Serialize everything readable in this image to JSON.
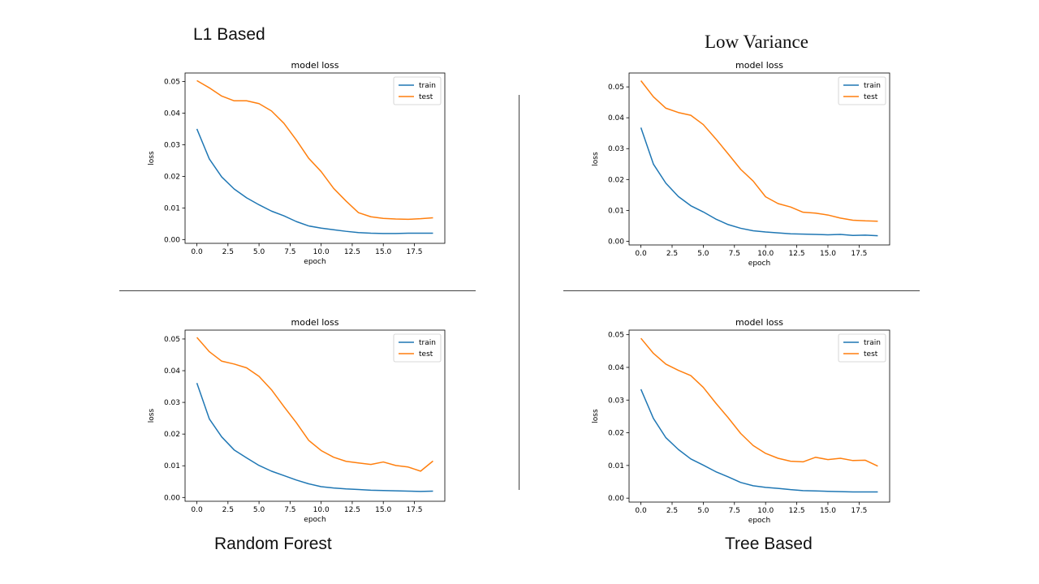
{
  "captions": {
    "top_left": "L1 Based",
    "top_right": "Low Variance",
    "bottom_left": "Random Forest",
    "bottom_right": "Tree Based"
  },
  "colors": {
    "train": "#1f77b4",
    "test": "#ff7f0e"
  },
  "chart_data": [
    {
      "type": "line",
      "title": "model loss",
      "xlabel": "epoch",
      "ylabel": "loss",
      "xlim": [
        -0.95,
        19.95
      ],
      "ylim": [
        -0.0012,
        0.0527
      ],
      "xticks": [
        "0.0",
        "2.5",
        "5.0",
        "7.5",
        "10.0",
        "12.5",
        "15.0",
        "17.5"
      ],
      "yticks": [
        "0.00",
        "0.01",
        "0.02",
        "0.03",
        "0.04",
        "0.05"
      ],
      "legend": "top-right",
      "x": [
        0,
        1,
        2,
        3,
        4,
        5,
        6,
        7,
        8,
        9,
        10,
        11,
        12,
        13,
        14,
        15,
        16,
        17,
        18,
        19
      ],
      "series": [
        {
          "name": "train",
          "color": "#1f77b4",
          "values": [
            0.035,
            0.0255,
            0.0198,
            0.016,
            0.0132,
            0.011,
            0.009,
            0.0075,
            0.0057,
            0.0043,
            0.0036,
            0.0031,
            0.0026,
            0.0022,
            0.002,
            0.0019,
            0.0019,
            0.002,
            0.002,
            0.002
          ]
        },
        {
          "name": "test",
          "color": "#ff7f0e",
          "values": [
            0.0503,
            0.048,
            0.0454,
            0.0439,
            0.0439,
            0.043,
            0.0407,
            0.0368,
            0.0315,
            0.0257,
            0.0215,
            0.0162,
            0.0122,
            0.0085,
            0.0072,
            0.0067,
            0.0065,
            0.0064,
            0.0066,
            0.0069
          ]
        }
      ]
    },
    {
      "type": "line",
      "title": "model loss",
      "xlabel": "epoch",
      "ylabel": "loss",
      "xlim": [
        -0.95,
        19.95
      ],
      "ylim": [
        -0.0012,
        0.0545
      ],
      "xticks": [
        "0.0",
        "2.5",
        "5.0",
        "7.5",
        "10.0",
        "12.5",
        "15.0",
        "17.5"
      ],
      "yticks": [
        "0.00",
        "0.01",
        "0.02",
        "0.03",
        "0.04",
        "0.05"
      ],
      "legend": "top-right",
      "x": [
        0,
        1,
        2,
        3,
        4,
        5,
        6,
        7,
        8,
        9,
        10,
        11,
        12,
        13,
        14,
        15,
        16,
        17,
        18,
        19
      ],
      "series": [
        {
          "name": "train",
          "color": "#1f77b4",
          "values": [
            0.0368,
            0.025,
            0.0188,
            0.0145,
            0.0115,
            0.0095,
            0.0072,
            0.0054,
            0.0042,
            0.0034,
            0.003,
            0.0027,
            0.0024,
            0.0023,
            0.0022,
            0.0021,
            0.0022,
            0.0019,
            0.002,
            0.0018
          ]
        },
        {
          "name": "test",
          "color": "#ff7f0e",
          "values": [
            0.052,
            0.0468,
            0.0431,
            0.0417,
            0.0408,
            0.0378,
            0.0332,
            0.0283,
            0.0233,
            0.0195,
            0.0144,
            0.0122,
            0.0111,
            0.0094,
            0.0091,
            0.0085,
            0.0075,
            0.0068,
            0.0066,
            0.0065
          ]
        }
      ]
    },
    {
      "type": "line",
      "title": "model loss",
      "xlabel": "epoch",
      "ylabel": "loss",
      "xlim": [
        -0.95,
        19.95
      ],
      "ylim": [
        -0.0012,
        0.0528
      ],
      "xticks": [
        "0.0",
        "2.5",
        "5.0",
        "7.5",
        "10.0",
        "12.5",
        "15.0",
        "17.5"
      ],
      "yticks": [
        "0.00",
        "0.01",
        "0.02",
        "0.03",
        "0.04",
        "0.05"
      ],
      "legend": "top-right",
      "x": [
        0,
        1,
        2,
        3,
        4,
        5,
        6,
        7,
        8,
        9,
        10,
        11,
        12,
        13,
        14,
        15,
        16,
        17,
        18,
        19
      ],
      "series": [
        {
          "name": "train",
          "color": "#1f77b4",
          "values": [
            0.0361,
            0.0248,
            0.0191,
            0.015,
            0.0125,
            0.0101,
            0.0083,
            0.0069,
            0.0055,
            0.0043,
            0.0034,
            0.003,
            0.0027,
            0.0025,
            0.0023,
            0.0022,
            0.0021,
            0.002,
            0.0019,
            0.002
          ]
        },
        {
          "name": "test",
          "color": "#ff7f0e",
          "values": [
            0.0505,
            0.046,
            0.043,
            0.0421,
            0.0409,
            0.0382,
            0.034,
            0.0287,
            0.0236,
            0.018,
            0.0148,
            0.0127,
            0.0114,
            0.0109,
            0.0104,
            0.0112,
            0.0101,
            0.0096,
            0.0083,
            0.0115
          ]
        }
      ]
    },
    {
      "type": "line",
      "title": "model loss",
      "xlabel": "epoch",
      "ylabel": "loss",
      "xlim": [
        -0.95,
        19.95
      ],
      "ylim": [
        -0.0012,
        0.0514
      ],
      "xticks": [
        "0.0",
        "2.5",
        "5.0",
        "7.5",
        "10.0",
        "12.5",
        "15.0",
        "17.5"
      ],
      "yticks": [
        "0.00",
        "0.01",
        "0.02",
        "0.03",
        "0.04",
        "0.05"
      ],
      "legend": "top-right",
      "x": [
        0,
        1,
        2,
        3,
        4,
        5,
        6,
        7,
        8,
        9,
        10,
        11,
        12,
        13,
        14,
        15,
        16,
        17,
        18,
        19
      ],
      "series": [
        {
          "name": "train",
          "color": "#1f77b4",
          "values": [
            0.0333,
            0.0244,
            0.0185,
            0.0149,
            0.012,
            0.0101,
            0.0081,
            0.0065,
            0.0048,
            0.0038,
            0.0033,
            0.003,
            0.0026,
            0.0023,
            0.0022,
            0.0021,
            0.002,
            0.0019,
            0.0019,
            0.0019
          ]
        },
        {
          "name": "test",
          "color": "#ff7f0e",
          "values": [
            0.0489,
            0.0443,
            0.041,
            0.0391,
            0.0375,
            0.0339,
            0.0291,
            0.0246,
            0.0198,
            0.0161,
            0.0137,
            0.0122,
            0.0113,
            0.0111,
            0.0125,
            0.0118,
            0.0122,
            0.0115,
            0.0116,
            0.0098
          ]
        }
      ]
    }
  ]
}
